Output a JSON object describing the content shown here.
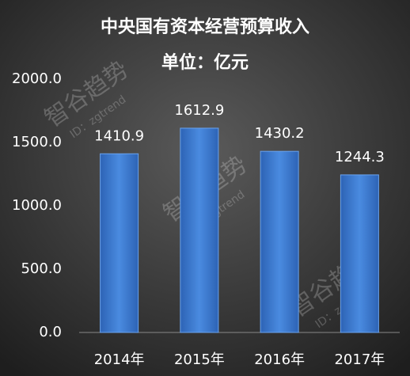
{
  "chart_data": {
    "type": "bar",
    "title": "中央国有资本经营预算收入",
    "subtitle": "单位：亿元",
    "categories": [
      "2014年",
      "2015年",
      "2016年",
      "2017年"
    ],
    "values": [
      1410.9,
      1612.9,
      1430.2,
      1244.3
    ],
    "color": "#3f7fd6",
    "ylim": [
      0,
      2000
    ],
    "yticks": [
      {
        "value": 0,
        "label": "0.0"
      },
      {
        "value": 500,
        "label": "500.0"
      },
      {
        "value": 1000,
        "label": "1000.0"
      },
      {
        "value": 1500,
        "label": "1500.0"
      },
      {
        "value": 2000,
        "label": "2000.0"
      }
    ],
    "grid": false
  },
  "watermark": {
    "name": "智谷趋势",
    "id": "ID：zgtrend"
  }
}
